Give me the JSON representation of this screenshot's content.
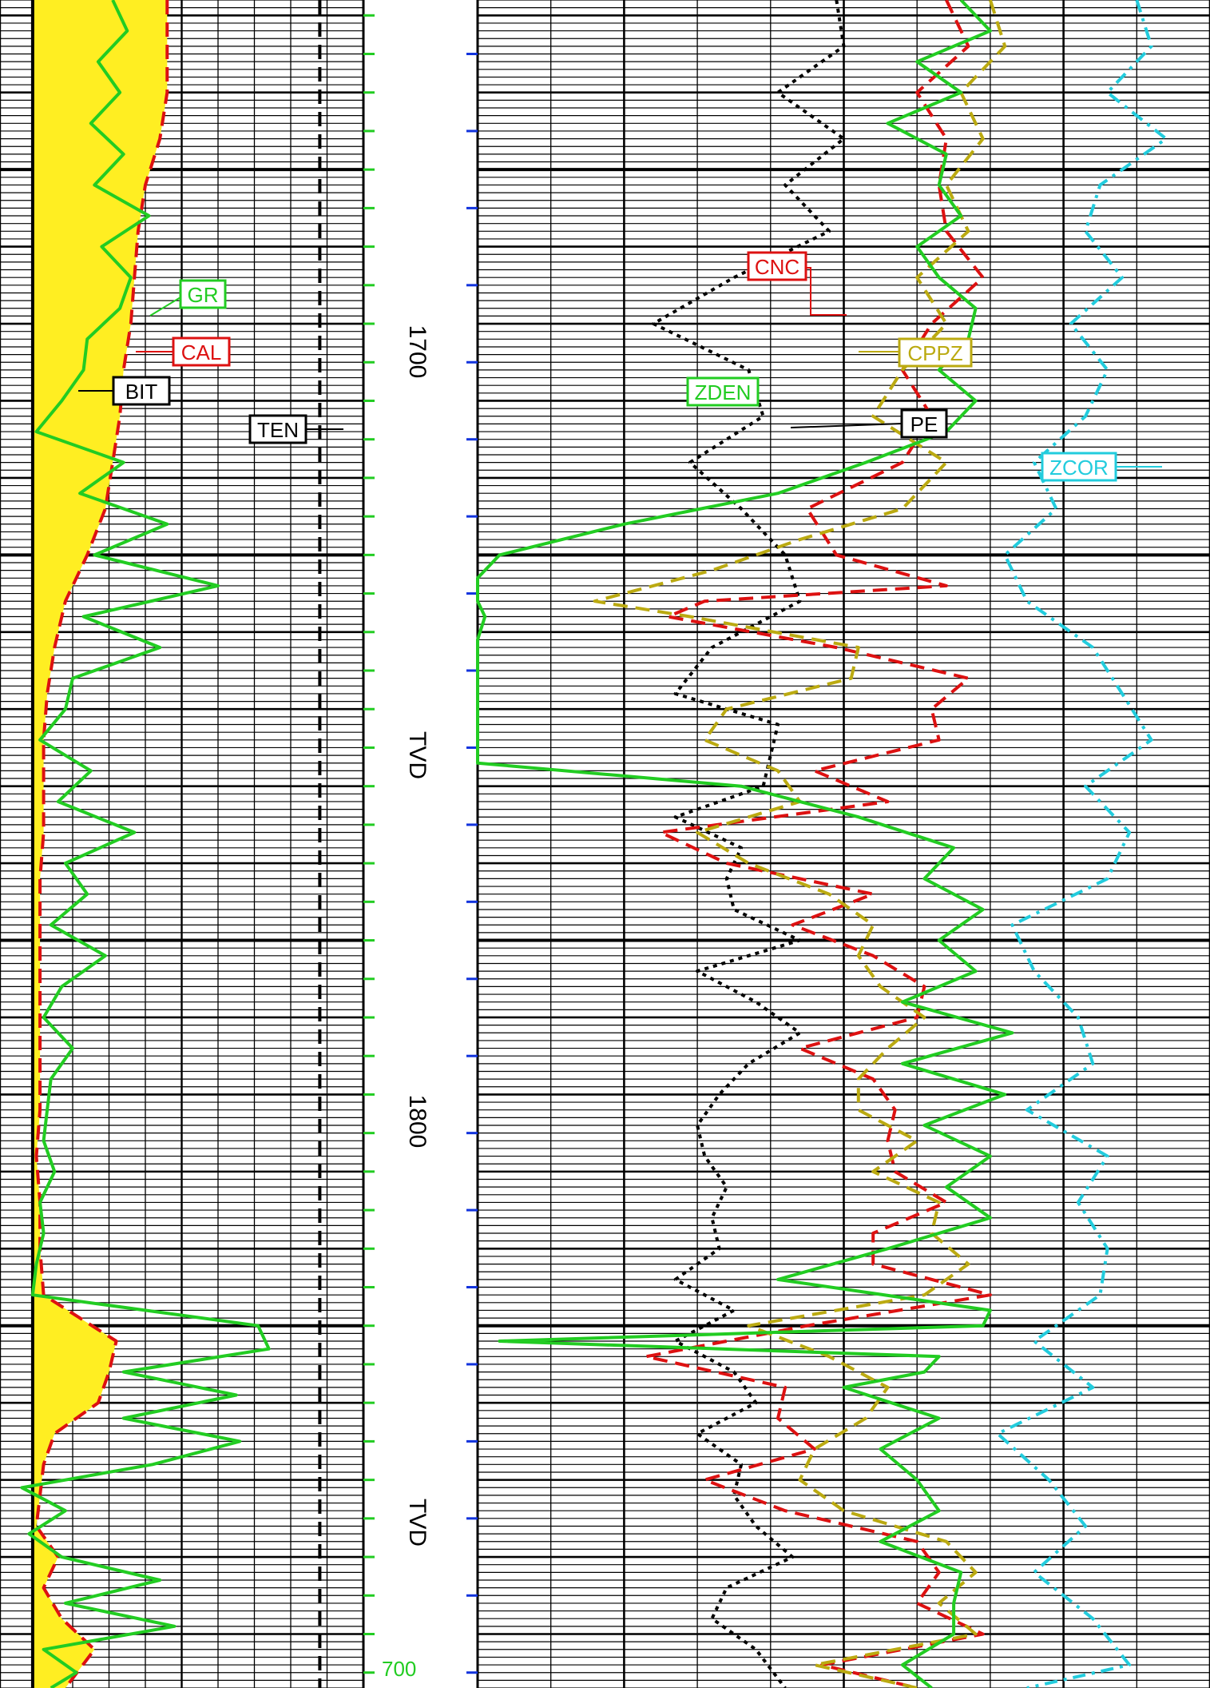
{
  "chart_data": {
    "type": "line",
    "title": "",
    "depth_axis": {
      "ylim": [
        1628,
        1847
      ],
      "tick_labels": [
        "1700",
        "TVD",
        "1800",
        "TVD"
      ],
      "tick_values": [
        1700,
        1725,
        1800,
        1825
      ],
      "bottom_marker": "700"
    },
    "colors": {
      "GR": "#22cc22",
      "CAL": "#dd1111",
      "BIT": "#000000",
      "TEN": "#000000",
      "CNC": "#dd1111",
      "CPPZ": "#bbaa11",
      "ZDEN": "#22cc22",
      "PE": "#000000",
      "ZCOR": "#22ccdd",
      "fill": "#ffee22"
    },
    "track1": {
      "xlim": [
        0,
        10
      ],
      "series": [
        {
          "name": "BIT",
          "style": "solid",
          "color": "#000000",
          "depth": [
            1628,
            1847
          ],
          "values": [
            0.9,
            0.9
          ]
        },
        {
          "name": "CAL",
          "style": "dashed",
          "color": "#dd1111",
          "depth": [
            1628,
            1634,
            1640,
            1646,
            1652,
            1658,
            1664,
            1670,
            1676,
            1682,
            1688,
            1694,
            1700,
            1706,
            1712,
            1718,
            1724,
            1730,
            1736,
            1742,
            1748,
            1754,
            1760,
            1766,
            1772,
            1778,
            1784,
            1790,
            1796,
            1802,
            1806,
            1810,
            1814,
            1818,
            1822,
            1826,
            1830,
            1834,
            1838,
            1842,
            1847
          ],
          "values": [
            4.6,
            4.6,
            4.6,
            4.4,
            4.0,
            3.8,
            3.7,
            3.6,
            3.4,
            3.3,
            3.1,
            2.9,
            2.4,
            1.8,
            1.5,
            1.3,
            1.2,
            1.2,
            1.2,
            1.1,
            1.1,
            1.1,
            1.1,
            1.1,
            1.1,
            1.0,
            1.1,
            1.1,
            1.2,
            3.2,
            3.0,
            2.7,
            1.5,
            1.2,
            1.1,
            1.0,
            1.6,
            1.2,
            1.7,
            2.6,
            1.8
          ]
        },
        {
          "name": "GR",
          "style": "solid",
          "color": "#22cc22",
          "depth": [
            1628,
            1632,
            1636,
            1640,
            1644,
            1648,
            1652,
            1656,
            1660,
            1664,
            1668,
            1672,
            1676,
            1680,
            1684,
            1688,
            1692,
            1696,
            1700,
            1704,
            1708,
            1712,
            1716,
            1720,
            1724,
            1728,
            1732,
            1736,
            1740,
            1744,
            1748,
            1752,
            1756,
            1760,
            1764,
            1768,
            1772,
            1776,
            1780,
            1784,
            1788,
            1792,
            1796,
            1800,
            1803,
            1806,
            1809,
            1812,
            1815,
            1818,
            1821,
            1824,
            1827,
            1830,
            1833,
            1836,
            1839,
            1842,
            1845,
            1847
          ],
          "values": [
            3.1,
            3.5,
            2.7,
            3.3,
            2.5,
            3.4,
            2.6,
            4.1,
            2.8,
            3.6,
            3.3,
            2.4,
            2.3,
            1.7,
            1.0,
            3.4,
            2.2,
            4.6,
            2.6,
            6.0,
            2.3,
            4.4,
            2.0,
            1.8,
            1.1,
            2.5,
            1.6,
            3.7,
            1.8,
            2.4,
            1.4,
            2.9,
            1.7,
            1.2,
            2.0,
            1.4,
            1.3,
            1.2,
            1.5,
            1.1,
            1.2,
            1.0,
            0.9,
            7.1,
            7.4,
            3.4,
            6.5,
            3.4,
            6.6,
            4.2,
            0.6,
            1.8,
            0.8,
            1.7,
            4.4,
            1.8,
            4.8,
            1.2,
            2.1,
            1.4
          ]
        },
        {
          "name": "TEN",
          "style": "dashed",
          "color": "#000000",
          "depth": [
            1628,
            1847
          ],
          "values": [
            8.8,
            8.8
          ]
        }
      ]
    },
    "track2": {
      "xlim": [
        0,
        10
      ],
      "series": [
        {
          "name": "PE",
          "style": "dotted",
          "color": "#000000",
          "depth": [
            1628,
            1634,
            1640,
            1646,
            1652,
            1658,
            1664,
            1670,
            1676,
            1682,
            1688,
            1694,
            1700,
            1706,
            1712,
            1718,
            1722,
            1726,
            1730,
            1734,
            1738,
            1742,
            1746,
            1750,
            1754,
            1758,
            1762,
            1766,
            1770,
            1774,
            1778,
            1782,
            1786,
            1790,
            1794,
            1798,
            1802,
            1806,
            1810,
            1814,
            1818,
            1822,
            1826,
            1830,
            1834,
            1838,
            1842,
            1847
          ],
          "values": [
            4.9,
            5.0,
            4.1,
            5.0,
            4.2,
            4.8,
            3.5,
            2.4,
            3.7,
            3.9,
            2.9,
            3.6,
            4.2,
            4.4,
            3.2,
            2.7,
            4.1,
            4.0,
            3.9,
            2.7,
            3.6,
            3.4,
            3.5,
            4.4,
            3.0,
            3.8,
            4.4,
            3.7,
            3.3,
            3.0,
            3.1,
            3.4,
            3.2,
            3.3,
            2.7,
            3.5,
            2.7,
            3.5,
            3.8,
            3.0,
            3.6,
            3.5,
            3.8,
            4.3,
            3.4,
            3.2,
            3.8,
            4.2
          ]
        },
        {
          "name": "CNC",
          "style": "dashed",
          "color": "#dd1111",
          "depth": [
            1628,
            1634,
            1640,
            1646,
            1652,
            1658,
            1664,
            1670,
            1676,
            1682,
            1688,
            1694,
            1700,
            1704,
            1706,
            1708,
            1712,
            1716,
            1720,
            1724,
            1728,
            1732,
            1736,
            1740,
            1744,
            1748,
            1752,
            1756,
            1760,
            1764,
            1768,
            1772,
            1776,
            1780,
            1784,
            1788,
            1792,
            1796,
            1800,
            1804,
            1808,
            1812,
            1816,
            1820,
            1824,
            1828,
            1832,
            1836,
            1840,
            1844,
            1847
          ],
          "values": [
            6.4,
            6.7,
            6.0,
            6.4,
            6.3,
            6.4,
            6.9,
            6.2,
            5.8,
            6.2,
            5.8,
            4.5,
            4.9,
            6.4,
            3.1,
            2.6,
            4.9,
            6.7,
            6.2,
            6.3,
            4.6,
            5.6,
            2.5,
            3.4,
            5.4,
            4.3,
            5.4,
            6.1,
            6.0,
            4.4,
            5.4,
            5.7,
            5.6,
            5.7,
            6.4,
            5.4,
            5.4,
            7.0,
            4.5,
            2.3,
            4.2,
            4.1,
            4.6,
            3.1,
            4.2,
            6.0,
            6.3,
            6.0,
            6.9,
            4.7,
            6.0
          ]
        },
        {
          "name": "CPPZ",
          "style": "dashed",
          "color": "#bbaa11",
          "depth": [
            1628,
            1634,
            1640,
            1646,
            1652,
            1658,
            1664,
            1670,
            1676,
            1682,
            1688,
            1694,
            1698,
            1702,
            1706,
            1708,
            1712,
            1716,
            1720,
            1724,
            1728,
            1732,
            1736,
            1740,
            1744,
            1748,
            1752,
            1756,
            1760,
            1764,
            1768,
            1772,
            1776,
            1780,
            1784,
            1788,
            1792,
            1796,
            1800,
            1804,
            1808,
            1812,
            1816,
            1820,
            1824,
            1828,
            1832,
            1836,
            1840,
            1844,
            1847
          ],
          "values": [
            7.0,
            7.2,
            6.6,
            6.9,
            6.4,
            6.7,
            6.0,
            6.4,
            5.8,
            5.4,
            6.4,
            5.8,
            4.4,
            3.2,
            1.6,
            2.9,
            5.2,
            5.1,
            3.4,
            3.1,
            4.1,
            4.4,
            3.0,
            3.7,
            4.8,
            5.4,
            5.2,
            5.5,
            6.1,
            5.6,
            5.2,
            5.2,
            6.0,
            5.4,
            6.3,
            6.2,
            6.7,
            6.1,
            3.7,
            4.8,
            5.6,
            5.3,
            4.6,
            4.4,
            5.0,
            6.4,
            6.8,
            6.3,
            6.8,
            4.6,
            6.0
          ]
        },
        {
          "name": "ZDEN",
          "style": "solid",
          "color": "#22cc22",
          "depth": [
            1628,
            1632,
            1636,
            1640,
            1644,
            1648,
            1652,
            1656,
            1660,
            1664,
            1668,
            1672,
            1676,
            1680,
            1684,
            1688,
            1692,
            1696,
            1700,
            1703,
            1706,
            1708,
            1711,
            1714,
            1720,
            1724,
            1727,
            1730,
            1734,
            1738,
            1742,
            1746,
            1750,
            1754,
            1758,
            1762,
            1766,
            1770,
            1774,
            1778,
            1782,
            1786,
            1790,
            1794,
            1798,
            1800,
            1802,
            1804,
            1806,
            1808,
            1812,
            1816,
            1820,
            1824,
            1828,
            1832,
            1836,
            1840,
            1844,
            1847
          ],
          "values": [
            6.6,
            7.0,
            6.0,
            6.6,
            5.6,
            6.4,
            6.3,
            6.6,
            6.0,
            6.3,
            6.8,
            6.7,
            6.3,
            6.8,
            6.4,
            5.3,
            4.1,
            2.0,
            0.3,
            0.0,
            0.0,
            0.1,
            0.0,
            0.0,
            0.0,
            0.0,
            0.0,
            3.6,
            5.2,
            6.5,
            6.1,
            6.9,
            6.3,
            6.8,
            5.8,
            7.3,
            5.8,
            7.2,
            6.1,
            7.0,
            6.4,
            7.0,
            5.6,
            4.1,
            7.0,
            6.9,
            0.3,
            6.3,
            6.1,
            5.0,
            6.3,
            5.5,
            6.0,
            6.3,
            5.5,
            6.6,
            6.5,
            6.5,
            5.8,
            6.2
          ]
        },
        {
          "name": "ZCOR",
          "style": "dashdot",
          "color": "#22ccdd",
          "depth": [
            1628,
            1634,
            1640,
            1646,
            1652,
            1658,
            1664,
            1670,
            1676,
            1682,
            1688,
            1694,
            1700,
            1706,
            1712,
            1718,
            1724,
            1730,
            1736,
            1742,
            1748,
            1754,
            1760,
            1766,
            1772,
            1778,
            1784,
            1790,
            1796,
            1802,
            1808,
            1814,
            1820,
            1826,
            1832,
            1838,
            1844,
            1847
          ],
          "values": [
            9.0,
            9.2,
            8.6,
            9.4,
            8.5,
            8.3,
            8.8,
            8.1,
            8.6,
            8.3,
            7.6,
            7.9,
            7.2,
            7.5,
            8.4,
            8.8,
            9.2,
            8.3,
            8.9,
            8.6,
            7.3,
            7.6,
            8.2,
            8.4,
            7.5,
            8.6,
            8.2,
            8.6,
            8.5,
            7.6,
            8.4,
            7.1,
            7.8,
            8.3,
            7.6,
            8.4,
            8.9,
            7.5
          ]
        }
      ]
    },
    "legend_labels": [
      "GR",
      "CAL",
      "BIT",
      "TEN",
      "CNC",
      "CPPZ",
      "ZDEN",
      "PE",
      "ZCOR"
    ]
  }
}
